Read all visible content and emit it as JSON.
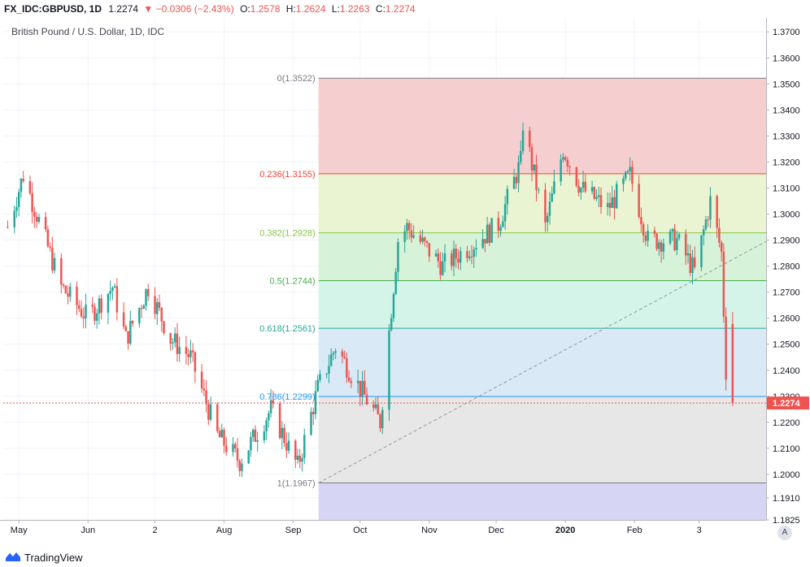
{
  "header": {
    "symbol": "FX_IDC:GBPUSD, 1D",
    "last": "1.2274",
    "change": "−0.0306 (−2.43%)",
    "o_label": "O:",
    "o_value": "1.2578",
    "h_label": "H:",
    "h_value": "1.2624",
    "l_label": "L:",
    "l_value": "1.2263",
    "c_label": "C:",
    "c_value": "1.2274"
  },
  "legend": {
    "subtitle": "British Pound / U.S. Dollar, 1D, IDC"
  },
  "footer": {
    "brand": "TradingView",
    "auto_label": "A"
  },
  "colors": {
    "up": "#26a69a",
    "down": "#ef5350",
    "grid": "#f0f3fa",
    "axis_text": "#131722"
  },
  "chart_data": {
    "type": "candlestick",
    "price_range": [
      1.1825,
      1.3735
    ],
    "price_ticks": [
      "1.3700",
      "1.3600",
      "1.3500",
      "1.3400",
      "1.3300",
      "1.3200",
      "1.3100",
      "1.3000",
      "1.2900",
      "1.2800",
      "1.2700",
      "1.2600",
      "1.2500",
      "1.2400",
      "1.2300",
      "1.2200",
      "1.2100",
      "1.2000",
      "1.1910",
      "1.1825"
    ],
    "time_ticks": [
      "May",
      "Jun",
      "2",
      "Aug",
      "Sep",
      "Oct",
      "Nov",
      "Dec",
      "2020",
      "Feb",
      "3"
    ],
    "last_price_label": "1.2274",
    "fibonacci": {
      "levels": [
        {
          "label": "0(1.3522)",
          "price": 1.3522,
          "ratio": 0
        },
        {
          "label": "0.236(1.3155)",
          "price": 1.3155,
          "ratio": 0.236
        },
        {
          "label": "0.382(1.2928)",
          "price": 1.2928,
          "ratio": 0.382
        },
        {
          "label": "0.5(1.2744)",
          "price": 1.2744,
          "ratio": 0.5
        },
        {
          "label": "0.618(1.2561)",
          "price": 1.2561,
          "ratio": 0.618
        },
        {
          "label": "0.786(1.2299)",
          "price": 1.2299,
          "ratio": 0.786
        },
        {
          "label": "1(1.1967)",
          "price": 1.1967,
          "ratio": 1
        }
      ],
      "band_colors": [
        "#f4cccc",
        "#e9f2d0",
        "#d4f1d6",
        "#d3f3e8",
        "#d7e8f4",
        "#e6e6e6",
        "#d4d3f3"
      ],
      "line_colors": [
        "#787b86",
        "#f44336",
        "#8bc34a",
        "#4caf50",
        "#26a69a",
        "#2196f3",
        "#787b86"
      ]
    },
    "waypoints": [
      {
        "d": "2019-04-26",
        "p": 1.295
      },
      {
        "d": "2019-05-03",
        "p": 1.315
      },
      {
        "d": "2019-05-20",
        "p": 1.272
      },
      {
        "d": "2019-06-01",
        "p": 1.26
      },
      {
        "d": "2019-06-12",
        "p": 1.272
      },
      {
        "d": "2019-06-18",
        "p": 1.252
      },
      {
        "d": "2019-06-28",
        "p": 1.272
      },
      {
        "d": "2019-07-08",
        "p": 1.252
      },
      {
        "d": "2019-07-17",
        "p": 1.245
      },
      {
        "d": "2019-07-29",
        "p": 1.215
      },
      {
        "d": "2019-08-08",
        "p": 1.205
      },
      {
        "d": "2019-08-22",
        "p": 1.225
      },
      {
        "d": "2019-09-03",
        "p": 1.203
      },
      {
        "d": "2019-09-12",
        "p": 1.233
      },
      {
        "d": "2019-09-20",
        "p": 1.249
      },
      {
        "d": "2019-10-03",
        "p": 1.23
      },
      {
        "d": "2019-10-10",
        "p": 1.22
      },
      {
        "d": "2019-10-18",
        "p": 1.29
      },
      {
        "d": "2019-10-22",
        "p": 1.295
      },
      {
        "d": "2019-11-07",
        "p": 1.28
      },
      {
        "d": "2019-11-20",
        "p": 1.288
      },
      {
        "d": "2019-12-02",
        "p": 1.296
      },
      {
        "d": "2019-12-12",
        "p": 1.32
      },
      {
        "d": "2019-12-13",
        "p": 1.335
      },
      {
        "d": "2019-12-23",
        "p": 1.295
      },
      {
        "d": "2019-12-31",
        "p": 1.325
      },
      {
        "d": "2020-01-08",
        "p": 1.31
      },
      {
        "d": "2020-01-20",
        "p": 1.302
      },
      {
        "d": "2020-01-30",
        "p": 1.315
      },
      {
        "d": "2020-02-07",
        "p": 1.29
      },
      {
        "d": "2020-02-20",
        "p": 1.29
      },
      {
        "d": "2020-02-28",
        "p": 1.278
      },
      {
        "d": "2020-03-06",
        "p": 1.305
      },
      {
        "d": "2020-03-11",
        "p": 1.285
      },
      {
        "d": "2020-03-13",
        "p": 1.24
      },
      {
        "d": "2020-03-16",
        "p": 1.2274
      }
    ],
    "time_range": [
      "2019-04-24",
      "2020-03-31"
    ]
  }
}
